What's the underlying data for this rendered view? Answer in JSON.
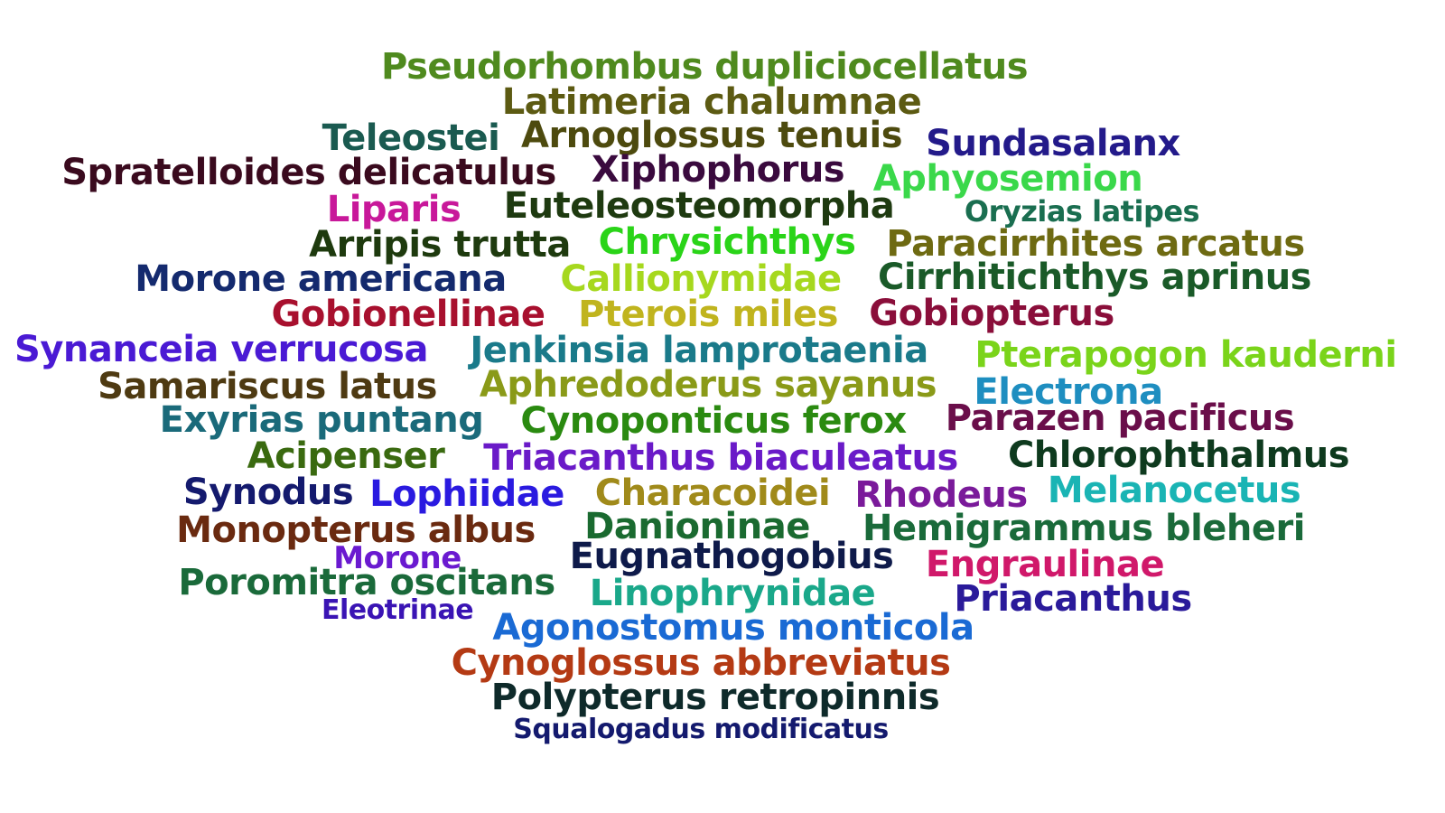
{
  "words": [
    {
      "text": "Pseudorhombus dupliciocellatus",
      "color": "#4f8a1e"
    },
    {
      "text": "Latimeria chalumnae",
      "color": "#5c5a12"
    },
    {
      "text": "Teleostei",
      "color": "#1a5a50"
    },
    {
      "text": "Arnoglossus tenuis",
      "color": "#4d4a0e"
    },
    {
      "text": "Sundasalanx",
      "color": "#231a8a"
    },
    {
      "text": "Spratelloides delicatulus",
      "color": "#3a0a1e"
    },
    {
      "text": "Xiphophorus",
      "color": "#3a0a3e"
    },
    {
      "text": "Aphyosemion",
      "color": "#3ad84a"
    },
    {
      "text": "Liparis",
      "color": "#c8189a"
    },
    {
      "text": "Euteleosteomorpha",
      "color": "#1e3a10"
    },
    {
      "text": "Oryzias latipes",
      "color": "#1a6e50"
    },
    {
      "text": "Arripis trutta",
      "color": "#1e3a0e"
    },
    {
      "text": "Chrysichthys",
      "color": "#2ad418"
    },
    {
      "text": "Paracirrhites arcatus",
      "color": "#6e6a12"
    },
    {
      "text": "Morone americana",
      "color": "#142a6e"
    },
    {
      "text": "Callionymidae",
      "color": "#a6d81e"
    },
    {
      "text": "Cirrhitichthys aprinus",
      "color": "#1a5a28"
    },
    {
      "text": "Gobionellinae",
      "color": "#a8102e"
    },
    {
      "text": "Pterois miles",
      "color": "#c0b41e"
    },
    {
      "text": "Gobiopterus",
      "color": "#8a0e3a"
    },
    {
      "text": "Synanceia verrucosa",
      "color": "#4a1ad4"
    },
    {
      "text": "Jenkinsia lamprotaenia",
      "color": "#1a7a8a"
    },
    {
      "text": "Pterapogon kauderni",
      "color": "#7ad41a"
    },
    {
      "text": "Samariscus latus",
      "color": "#4e3a12"
    },
    {
      "text": "Aphredoderus sayanus",
      "color": "#8a9a18"
    },
    {
      "text": "Electrona",
      "color": "#1e8ec0"
    },
    {
      "text": "Exyrias puntang",
      "color": "#1a6a7a"
    },
    {
      "text": "Cynoponticus ferox",
      "color": "#2a8a10"
    },
    {
      "text": "Parazen pacificus",
      "color": "#6a0e4a"
    },
    {
      "text": "Acipenser",
      "color": "#3a6a10"
    },
    {
      "text": "Triacanthus biaculeatus",
      "color": "#6a1ac8"
    },
    {
      "text": "Chlorophthalmus",
      "color": "#0e3a1e"
    },
    {
      "text": "Synodus",
      "color": "#141a6e"
    },
    {
      "text": "Lophiidae",
      "color": "#2a1ae0"
    },
    {
      "text": "Characoidei",
      "color": "#a08a1a"
    },
    {
      "text": "Rhodeus",
      "color": "#7a1a9a"
    },
    {
      "text": "Melanocetus",
      "color": "#1ab4b4"
    },
    {
      "text": "Monopterus albus",
      "color": "#6a2a10"
    },
    {
      "text": "Danioninae",
      "color": "#1a6a30"
    },
    {
      "text": "Hemigrammus bleheri",
      "color": "#1a6a3a"
    },
    {
      "text": "Morone",
      "color": "#6a1ad0"
    },
    {
      "text": "Eugnathogobius",
      "color": "#0e1a4a"
    },
    {
      "text": "Engraulinae",
      "color": "#d0186a"
    },
    {
      "text": "Poromitra oscitans",
      "color": "#1a6a3a"
    },
    {
      "text": "Linophrynidae",
      "color": "#1aa88a"
    },
    {
      "text": "Priacanthus",
      "color": "#2a1a9a"
    },
    {
      "text": "Eleotrinae",
      "color": "#3a14b4"
    },
    {
      "text": "Agonostomus monticola",
      "color": "#1a6ad4"
    },
    {
      "text": "Cynoglossus abbreviatus",
      "color": "#b43a14"
    },
    {
      "text": "Polypterus retropinnis",
      "color": "#0e2a2a"
    },
    {
      "text": "Squalogadus modificatus",
      "color": "#141a6e"
    }
  ]
}
